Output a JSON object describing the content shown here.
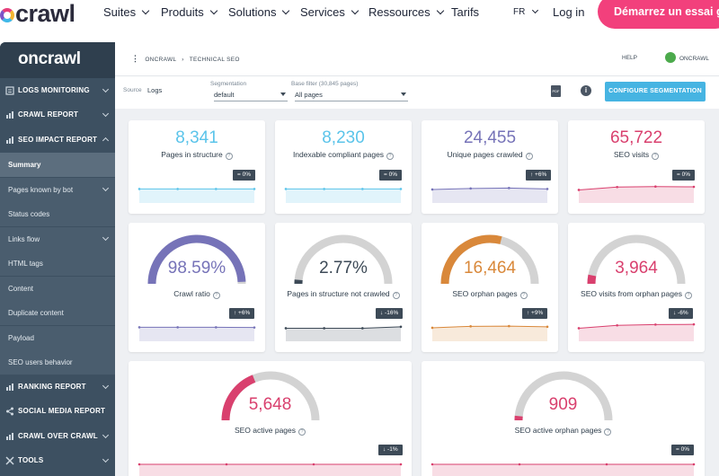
{
  "topnav": {
    "logo": "crawl",
    "items": [
      "Suites",
      "Produits",
      "Solutions",
      "Services",
      "Ressources",
      "Tarifs"
    ],
    "lang": "FR",
    "login": "Log in",
    "cta": "Démarrez un essai grat"
  },
  "sidebar": {
    "logo": "oncrawl",
    "sections": [
      {
        "label": "LOGS MONITORING"
      },
      {
        "label": "CRAWL REPORT"
      },
      {
        "label": "SEO IMPACT REPORT"
      },
      {
        "label": "RANKING REPORT"
      },
      {
        "label": "SOCIAL MEDIA REPORT"
      },
      {
        "label": "CRAWL OVER CRAWL"
      },
      {
        "label": "TOOLS"
      }
    ],
    "subitems": [
      {
        "label": "Summary"
      },
      {
        "label": "Pages known by bot"
      },
      {
        "label": "Status codes"
      },
      {
        "label": "Links flow"
      },
      {
        "label": "HTML tags"
      },
      {
        "label": "Content"
      },
      {
        "label": "Duplicate content"
      },
      {
        "label": "Payload"
      },
      {
        "label": "SEO users behavior"
      }
    ]
  },
  "header": {
    "crumb1": "ONCRAWL",
    "crumb2": "TECHNICAL SEO",
    "help": "HELP",
    "user": "ONCRAWL"
  },
  "filters": {
    "source_label": "Source",
    "source_value": "Logs",
    "segmentation_label": "Segmentation",
    "segmentation_value": "default",
    "base_filter_label": "Base filter (30,845 pages)",
    "base_filter_value": "All pages",
    "pdf_icon": "pdf-icon",
    "configure_button": "CONFIGURE SEGMENTATION"
  },
  "kpis": [
    {
      "value": "8,341",
      "label": "Pages in structure",
      "badge": "= 0%",
      "color": "#5bc4ea",
      "trend": [
        0.5,
        0.5,
        0.5,
        0.5
      ]
    },
    {
      "value": "8,230",
      "label": "Indexable compliant pages",
      "badge": "= 0%",
      "color": "#5bc4ea",
      "trend": [
        0.5,
        0.5,
        0.5,
        0.5
      ]
    },
    {
      "value": "24,455",
      "label": "Unique pages crawled",
      "badge": "↑ +6%",
      "color": "#7673b8",
      "trend": [
        0.45,
        0.55,
        0.6,
        0.5
      ]
    },
    {
      "value": "65,722",
      "label": "SEO visits",
      "badge": "= 0%",
      "color": "#d9406e",
      "trend": [
        0.4,
        0.7,
        0.75,
        0.72
      ]
    }
  ],
  "gauges": [
    {
      "value": "98.59%",
      "label": "Crawl ratio",
      "badge": "↑ +6%",
      "color": "#7673b8",
      "fill": 0.9859,
      "trend": [
        0.5,
        0.5,
        0.5,
        0.48
      ]
    },
    {
      "value": "2.77%",
      "label": "Pages in structure not crawled",
      "badge": "↓ -16%",
      "color": "#3d4a57",
      "fill": 0.0277,
      "trend": [
        0.4,
        0.4,
        0.4,
        0.55
      ]
    },
    {
      "value": "16,464",
      "label": "SEO orphan pages",
      "badge": "↑ +9%",
      "color": "#d9883a",
      "fill": 0.58,
      "trend": [
        0.45,
        0.6,
        0.62,
        0.55
      ]
    },
    {
      "value": "3,964",
      "label": "SEO visits from orphan pages",
      "badge": "↓ -6%",
      "color": "#d9406e",
      "fill": 0.06,
      "trend": [
        0.4,
        0.7,
        0.78,
        0.8
      ]
    },
    {
      "value": "5,648",
      "label": "SEO active pages",
      "badge": "↓ -1%",
      "color": "#d9406e",
      "fill": 0.38,
      "trend": [
        0.5,
        0.5,
        0.5,
        0.5
      ]
    },
    {
      "value": "909",
      "label": "SEO active orphan pages",
      "badge": "= 0%",
      "color": "#d9406e",
      "fill": 0.03,
      "trend": [
        0.5,
        0.5,
        0.5,
        0.5
      ]
    }
  ]
}
